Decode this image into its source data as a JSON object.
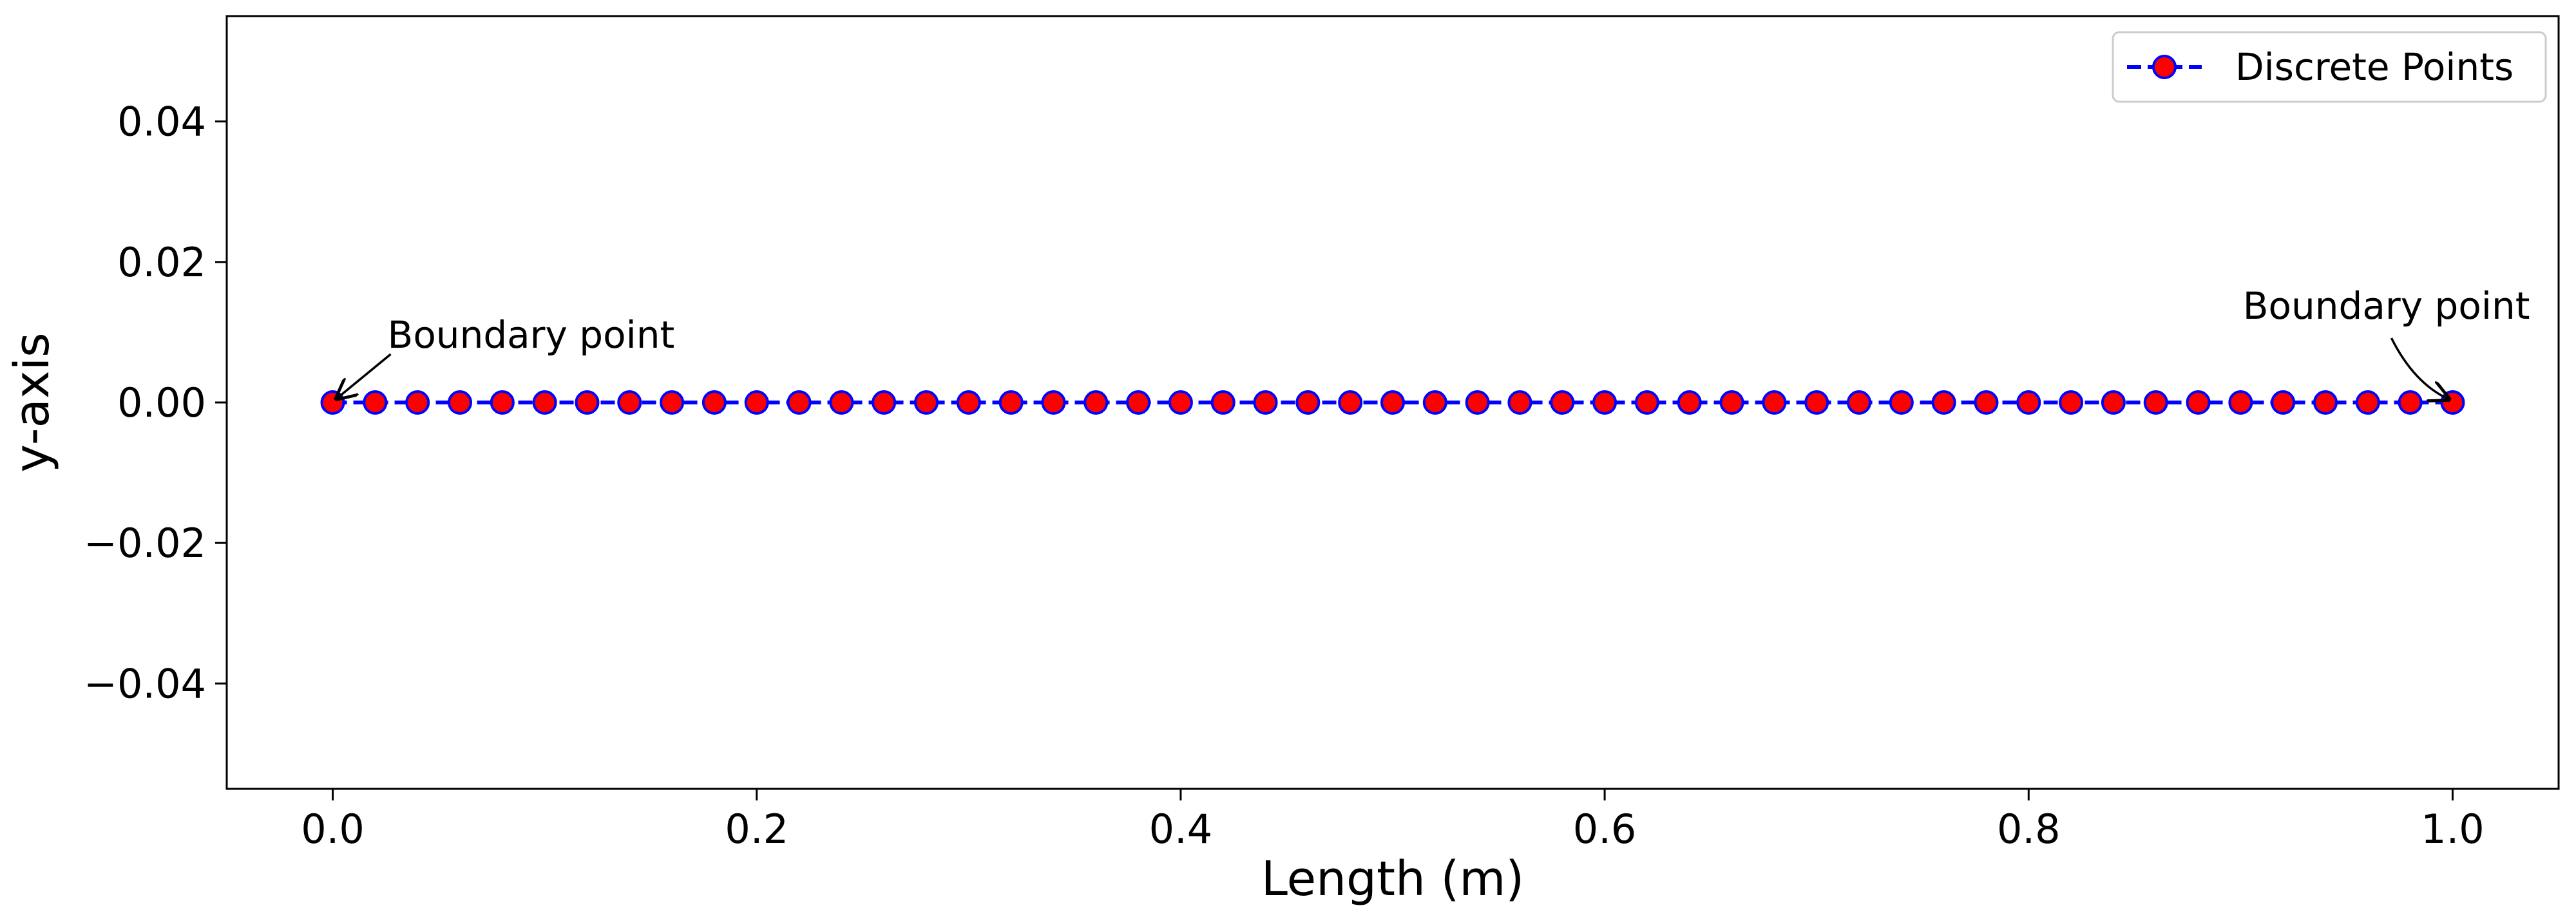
{
  "chart_data": {
    "type": "line",
    "title": "",
    "xlabel": "Length (m)",
    "ylabel": "y-axis",
    "xlim": [
      -0.05,
      1.05
    ],
    "ylim": [
      -0.055,
      0.055
    ],
    "x_ticks": [
      0.0,
      0.2,
      0.4,
      0.6,
      0.8,
      1.0
    ],
    "x_tick_labels": [
      "0.0",
      "0.2",
      "0.4",
      "0.6",
      "0.8",
      "1.0"
    ],
    "y_ticks": [
      0.04,
      0.02,
      0.0,
      -0.02,
      -0.04
    ],
    "y_tick_labels": [
      "0.04",
      "0.02",
      "0.00",
      "−0.02",
      "−0.04"
    ],
    "grid": false,
    "legend": {
      "placement": "top-right",
      "entries": [
        "Discrete Points"
      ]
    },
    "series": [
      {
        "name": "Discrete Points",
        "line_style": "dashed",
        "line_color": "#0000ff",
        "marker": "circle",
        "marker_face_color": "#ff0000",
        "marker_edge_color": "#0000ff",
        "x": [
          0.0,
          0.02,
          0.04,
          0.06,
          0.08,
          0.1,
          0.12,
          0.14,
          0.16,
          0.18,
          0.2,
          0.22,
          0.24,
          0.26,
          0.28,
          0.3,
          0.32,
          0.34,
          0.36,
          0.38,
          0.4,
          0.42,
          0.44,
          0.46,
          0.48,
          0.5,
          0.52,
          0.54,
          0.56,
          0.58,
          0.6,
          0.62,
          0.64,
          0.66,
          0.68,
          0.7,
          0.72,
          0.74,
          0.76,
          0.78,
          0.8,
          0.82,
          0.84,
          0.86,
          0.88,
          0.9,
          0.92,
          0.94,
          0.96,
          0.98,
          1.0
        ],
        "y": [
          0,
          0,
          0,
          0,
          0,
          0,
          0,
          0,
          0,
          0,
          0,
          0,
          0,
          0,
          0,
          0,
          0,
          0,
          0,
          0,
          0,
          0,
          0,
          0,
          0,
          0,
          0,
          0,
          0,
          0,
          0,
          0,
          0,
          0,
          0,
          0,
          0,
          0,
          0,
          0,
          0,
          0,
          0,
          0,
          0,
          0,
          0,
          0,
          0,
          0,
          0
        ]
      }
    ],
    "annotations": [
      {
        "text": "Boundary point",
        "x": 0.0,
        "y": 0.0
      },
      {
        "text": "Boundary point",
        "x": 1.0,
        "y": 0.0
      }
    ]
  }
}
